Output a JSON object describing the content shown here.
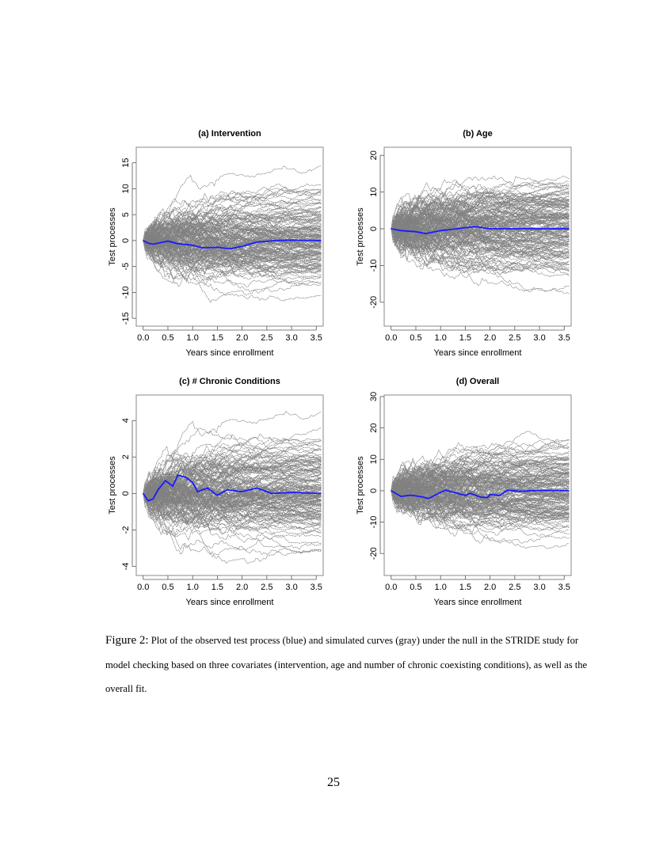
{
  "figure": {
    "label": "Figure 2:",
    "caption": "Plot of the observed test process (blue) and simulated curves (gray) under the null in the STRIDE study for model checking based on three covariates (intervention, age and number of chronic coexisting conditions), as well as the overall fit."
  },
  "page_number": "25",
  "colors": {
    "observed": "#1a1aff",
    "simulated": "#808080",
    "axis": "#888888"
  },
  "chart_data": [
    {
      "type": "line",
      "title": "(a) Intervention",
      "xlabel": "Years since enrollment",
      "ylabel": "Test processes",
      "xlim": [
        -0.14,
        3.64
      ],
      "ylim": [
        -16.5,
        18
      ],
      "xticks": [
        "0.0",
        "0.5",
        "1.0",
        "1.5",
        "2.0",
        "2.5",
        "3.0",
        "3.5"
      ],
      "yticks": [
        "-15",
        "-10",
        "-5",
        "0",
        "5",
        "10",
        "15"
      ],
      "grid": false,
      "simulated_range_at_end": [
        -12,
        14
      ],
      "observed": {
        "x": [
          0,
          0.1,
          0.2,
          0.35,
          0.5,
          0.7,
          1.0,
          1.2,
          1.5,
          1.75,
          2.0,
          2.3,
          2.7,
          3.0,
          3.6
        ],
        "y": [
          0,
          -0.5,
          -0.7,
          -0.4,
          -0.1,
          -0.6,
          -0.9,
          -1.4,
          -1.3,
          -1.6,
          -1.1,
          -0.3,
          0,
          0.1,
          0
        ]
      }
    },
    {
      "type": "line",
      "title": "(b) Age",
      "xlabel": "Years since enrollment",
      "ylabel": "Test processes",
      "xlim": [
        -0.14,
        3.64
      ],
      "ylim": [
        -26.5,
        22.2
      ],
      "xticks": [
        "0.0",
        "0.5",
        "1.0",
        "1.5",
        "2.0",
        "2.5",
        "3.0",
        "3.5"
      ],
      "yticks": [
        "-20",
        "-10",
        "0",
        "10",
        "20"
      ],
      "grid": false,
      "simulated_range_at_end": [
        -26,
        18.5
      ],
      "observed": {
        "x": [
          0,
          0.2,
          0.5,
          0.7,
          1.0,
          1.2,
          1.5,
          1.7,
          2.0,
          2.5,
          3.6
        ],
        "y": [
          0,
          -0.5,
          -0.8,
          -1.3,
          -0.5,
          -0.2,
          0.3,
          0.6,
          0,
          0,
          0
        ]
      }
    },
    {
      "type": "line",
      "title": "(c) # Chronic Conditions",
      "xlabel": "Years since enrollment",
      "ylabel": "Test processes",
      "xlim": [
        -0.14,
        3.64
      ],
      "ylim": [
        -4.5,
        5.4
      ],
      "xticks": [
        "0.0",
        "0.5",
        "1.0",
        "1.5",
        "2.0",
        "2.5",
        "3.0",
        "3.5"
      ],
      "yticks": [
        "-4",
        "-2",
        "0",
        "2",
        "4"
      ],
      "grid": false,
      "simulated_range_at_end": [
        -3.5,
        4.7
      ],
      "observed": {
        "x": [
          0,
          0.1,
          0.2,
          0.3,
          0.45,
          0.6,
          0.7,
          0.85,
          1.0,
          1.1,
          1.3,
          1.5,
          1.7,
          2.0,
          2.3,
          2.6,
          3.0,
          3.6
        ],
        "y": [
          0,
          -0.4,
          -0.3,
          0.2,
          0.7,
          0.4,
          1.0,
          0.9,
          0.6,
          0.1,
          0.3,
          -0.1,
          0.2,
          0.1,
          0.3,
          0,
          0.05,
          0
        ]
      }
    },
    {
      "type": "line",
      "title": "(d) Overall",
      "xlabel": "Years since enrollment",
      "ylabel": "Test processes",
      "xlim": [
        -0.14,
        3.64
      ],
      "ylim": [
        -27,
        30.5
      ],
      "xticks": [
        "0.0",
        "0.5",
        "1.0",
        "1.5",
        "2.0",
        "2.5",
        "3.0",
        "3.5"
      ],
      "yticks": [
        "-20",
        "-10",
        "0",
        "10",
        "20",
        "30"
      ],
      "grid": false,
      "simulated_range_at_end": [
        -24,
        24
      ],
      "observed": {
        "x": [
          0,
          0.2,
          0.4,
          0.65,
          0.75,
          1.0,
          1.1,
          1.5,
          1.6,
          1.8,
          1.95,
          2.0,
          2.2,
          2.35,
          2.6,
          3.0,
          3.6
        ],
        "y": [
          0,
          -1.8,
          -1.4,
          -2,
          -2.5,
          -0.5,
          0.2,
          -1.5,
          -0.8,
          -2,
          -2.2,
          -1.2,
          -1.5,
          0.2,
          -0.2,
          0.1,
          0
        ]
      }
    }
  ]
}
